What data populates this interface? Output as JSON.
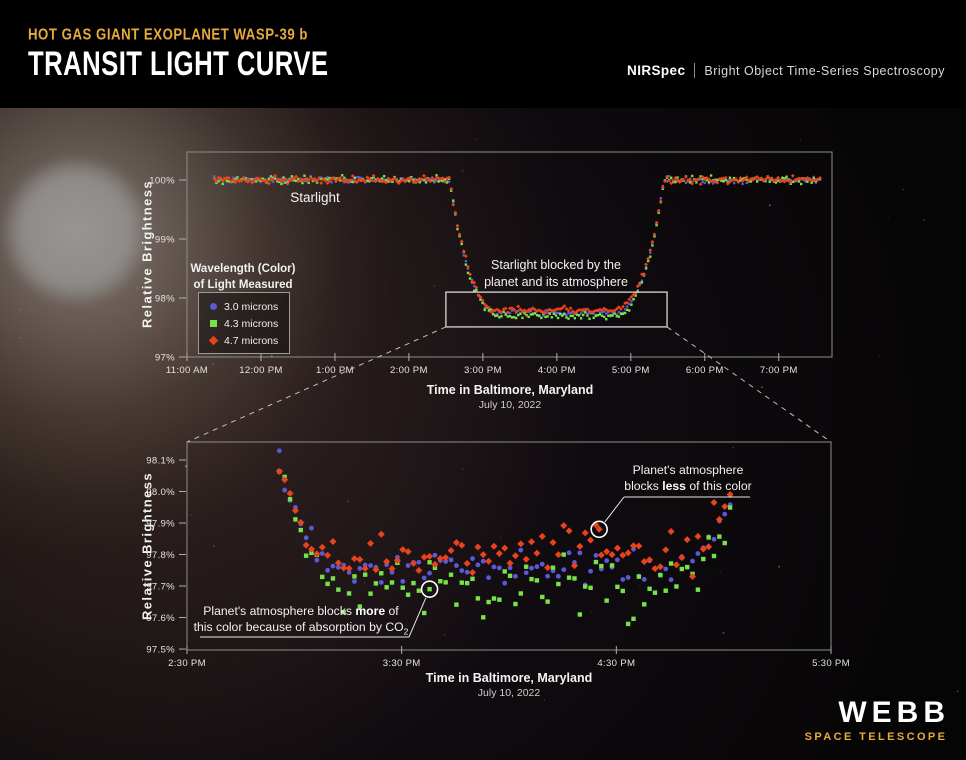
{
  "header": {
    "kicker": "HOT GAS GIANT EXOPLANET WASP-39 b",
    "title": "TRANSIT LIGHT CURVE",
    "instrument": "NIRSpec",
    "mode": "Bright Object Time-Series Spectroscopy"
  },
  "colors": {
    "gold": "#e9aa3d",
    "blue_3_0_microns": "#5a5ad8",
    "green_4_3_microns": "#77e24a",
    "red_4_7_microns": "#e8431c",
    "axis_frame": "#8d8d8b",
    "highlight_box": "#d8d8d6"
  },
  "legend": {
    "title_line1": "Wavelength (Color)",
    "title_line2": "of Light Measured",
    "items": [
      {
        "label": "3.0 microns",
        "marker": "circle",
        "color": "#5a5ad8"
      },
      {
        "label": "4.3 microns",
        "marker": "square",
        "color": "#77e24a"
      },
      {
        "label": "4.7 microns",
        "marker": "diamond",
        "color": "#e8431c"
      }
    ]
  },
  "logo": {
    "name": "WEBB",
    "subtitle": "SPACE TELESCOPE"
  },
  "chart_data": [
    {
      "id": "overview",
      "type": "scatter",
      "description": "Full transit light curve of WASP-39 b",
      "xlabel": "Time in Baltimore, Maryland",
      "xlabel_sub": "July 10, 2022",
      "ylabel": "Relative Brightness",
      "x_range_hours": [
        11.0,
        19.72
      ],
      "y_range_pct": [
        97.0,
        100.475
      ],
      "x_ticks": [
        {
          "h": 11,
          "label": "11:00 AM"
        },
        {
          "h": 12,
          "label": "12:00 PM"
        },
        {
          "h": 13,
          "label": "1:00 PM"
        },
        {
          "h": 14,
          "label": "2:00 PM"
        },
        {
          "h": 15,
          "label": "3:00 PM"
        },
        {
          "h": 16,
          "label": "4:00 PM"
        },
        {
          "h": 17,
          "label": "5:00 PM"
        },
        {
          "h": 18,
          "label": "6:00 PM"
        },
        {
          "h": 19,
          "label": "7:00 PM"
        }
      ],
      "y_ticks": [
        {
          "v": 100,
          "label": "100%"
        },
        {
          "v": 99,
          "label": "99%"
        },
        {
          "v": 98,
          "label": "98%"
        },
        {
          "v": 97,
          "label": "97%"
        }
      ],
      "baseline_pct": 100.0,
      "transit_model": {
        "ingress_start_h": 14.55,
        "ingress_end_h": 15.25,
        "egress_start_h": 16.75,
        "egress_end_h": 17.45,
        "shoulder_exponent": 2.5
      },
      "series": [
        {
          "name": "3.0 microns",
          "marker": "circle",
          "color": "#5a5ad8",
          "transit_bottom_pct": 97.755,
          "noise_scale": 0.9
        },
        {
          "name": "4.3 microns",
          "marker": "square",
          "color": "#77e24a",
          "transit_bottom_pct": 97.705,
          "noise_scale": 1.1
        },
        {
          "name": "4.7 microns",
          "marker": "diamond",
          "color": "#e8431c",
          "transit_bottom_pct": 97.8,
          "noise_scale": 1.0
        }
      ],
      "sampling": {
        "start_h": 11.37,
        "end_h": 19.58,
        "cadence_min": 1.7,
        "noise_sigma_pct": 0.028,
        "seed": 7
      },
      "marker_px": {
        "circle": 2.6,
        "square": 2.4,
        "diamond": 3.8
      },
      "annotations": {
        "starlight": "Starlight",
        "blocked_line1": "Starlight blocked by the",
        "blocked_line2": "planet and its atmosphere"
      },
      "highlight_box": {
        "x_hours": [
          14.5,
          17.49
        ],
        "y_pct": [
          98.1,
          97.51
        ]
      }
    },
    {
      "id": "zoom",
      "type": "scatter",
      "description": "Zoom on the bottom of the transit showing wavelength-dependent depth (CO2 absorption at 4.3 microns)",
      "xlabel": "Time in Baltimore, Maryland",
      "xlabel_sub": "July 10, 2022",
      "ylabel": "Relative Brightness",
      "x_range_hours": [
        14.5,
        17.5
      ],
      "y_range_pct": [
        97.497,
        98.157
      ],
      "x_ticks": [
        {
          "h": 14.5,
          "label": "2:30 PM"
        },
        {
          "h": 15.5,
          "label": "3:30 PM"
        },
        {
          "h": 16.5,
          "label": "4:30 PM"
        },
        {
          "h": 17.5,
          "label": "5:30 PM"
        }
      ],
      "y_ticks": [
        {
          "v": 98.1,
          "label": "98.1%"
        },
        {
          "v": 98.0,
          "label": "98.0%"
        },
        {
          "v": 97.9,
          "label": "97.9%"
        },
        {
          "v": 97.8,
          "label": "97.8%"
        },
        {
          "v": 97.7,
          "label": "97.7%"
        },
        {
          "v": 97.6,
          "label": "97.6%"
        },
        {
          "v": 97.5,
          "label": "97.5%"
        }
      ],
      "baseline_pct": 100.0,
      "transit_model": {
        "ingress_start_h": 14.55,
        "ingress_end_h": 15.25,
        "egress_start_h": 16.75,
        "egress_end_h": 17.45,
        "shoulder_exponent": 2.5
      },
      "series": [
        {
          "name": "3.0 microns",
          "marker": "circle",
          "color": "#5a5ad8",
          "transit_bottom_pct": 97.755,
          "noise_scale": 0.8
        },
        {
          "name": "4.3 microns",
          "marker": "square",
          "color": "#77e24a",
          "transit_bottom_pct": 97.705,
          "noise_scale": 1.35
        },
        {
          "name": "4.7 microns",
          "marker": "diamond",
          "color": "#e8431c",
          "transit_bottom_pct": 97.8,
          "noise_scale": 1.0
        }
      ],
      "sampling": {
        "start_h": 14.93,
        "end_h": 17.03,
        "cadence_min": 1.5,
        "noise_sigma_pct": 0.036,
        "seed": 23
      },
      "marker_px": {
        "circle": 4.8,
        "square": 4.4,
        "diamond": 7.0
      },
      "annotations": {
        "less": {
          "line1": "Planet's atmosphere",
          "line2_pre": "blocks ",
          "line2_bold": "less",
          "line2_post": " of this color",
          "target_series": "4.7 microns",
          "target_h": 16.42,
          "target_pct": 97.88
        },
        "more": {
          "line1_pre": "Planet's atmosphere blocks ",
          "line1_bold": "more",
          "line1_post": " of",
          "line2_pre": "this color because of absorption by CO",
          "line2_sub": "2",
          "target_series": "4.3 microns",
          "target_h": 15.63,
          "target_pct": 97.69
        }
      }
    }
  ]
}
